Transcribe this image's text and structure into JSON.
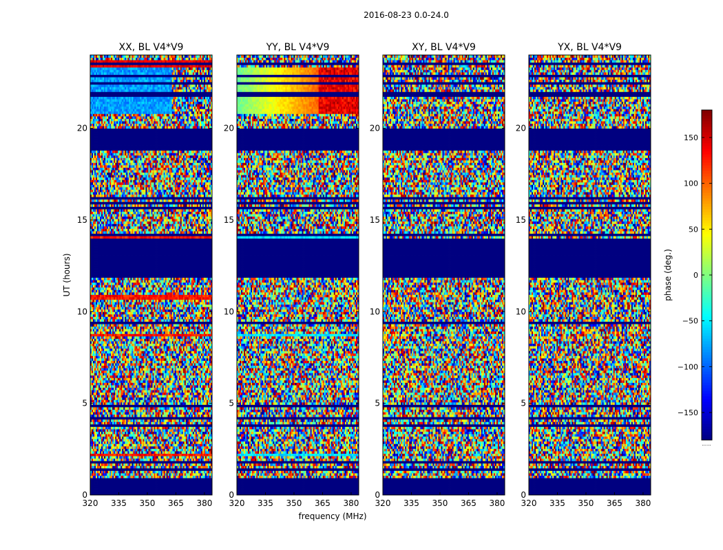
{
  "chart_data": {
    "type": "heatmap",
    "suptitle": "2016-08-23 0.0-24.0",
    "xlabel": "frequency (MHz)",
    "ylabel": "UT (hours)",
    "xlim": [
      320,
      384
    ],
    "ylim": [
      0,
      24
    ],
    "xticks": [
      320,
      335,
      350,
      365,
      380
    ],
    "yticks": [
      0,
      5,
      10,
      15,
      20
    ],
    "panels": [
      {
        "name": "panel-xx",
        "title": "XX, BL V4*V9",
        "pattern": "xx"
      },
      {
        "name": "panel-yy",
        "title": "YY, BL V4*V9",
        "pattern": "yy"
      },
      {
        "name": "panel-xy",
        "title": "XY, BL V4*V9",
        "pattern": "noise"
      },
      {
        "name": "panel-yx",
        "title": "YX, BL V4*V9",
        "pattern": "noise"
      }
    ],
    "flagged_bands_hours": [
      [
        0,
        1.0
      ],
      [
        12.0,
        14.0
      ],
      [
        18.8,
        20.0
      ]
    ],
    "colorbar": {
      "label": "phase (deg.)",
      "range": [
        -180,
        180
      ],
      "ticks": [
        -150,
        -100,
        -50,
        0,
        50,
        100,
        150
      ],
      "tick_labels": [
        "−150",
        "−100",
        "−50",
        "0",
        "50",
        "100",
        "150"
      ],
      "colormap": "jet",
      "below_label": "......"
    }
  }
}
